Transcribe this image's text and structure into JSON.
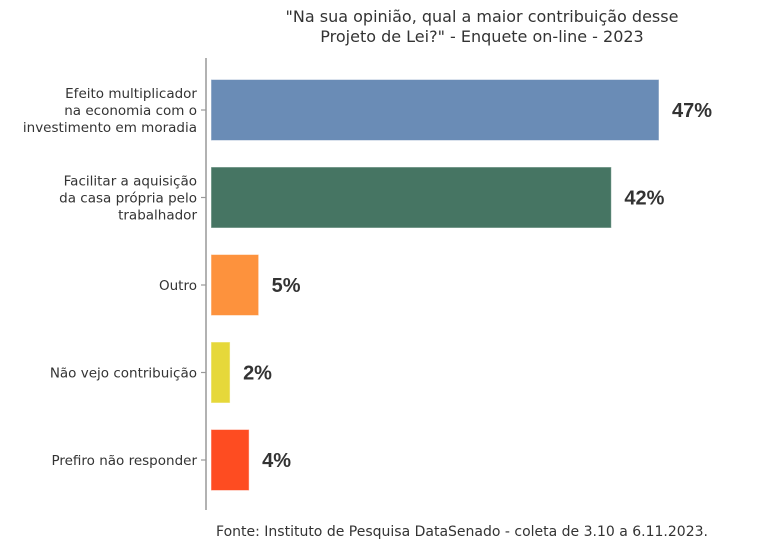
{
  "chart_data": {
    "type": "bar",
    "orientation": "horizontal",
    "title": [
      "\"Na sua opinião, qual a maior contribuição desse",
      "Projeto de Lei?\" - Enquete on-line - 2023"
    ],
    "categories": [
      [
        "Efeito multiplicador",
        "na economia com o",
        "investimento em moradia"
      ],
      [
        "Facilitar a aquisição",
        "da casa própria pelo",
        "trabalhador"
      ],
      [
        "Outro"
      ],
      [
        "Não vejo contribuição"
      ],
      [
        "Prefiro não responder"
      ]
    ],
    "values": [
      47,
      42,
      5,
      2,
      4
    ],
    "labels": [
      "47%",
      "42%",
      "5%",
      "2%",
      "4%"
    ],
    "colors": [
      "#6a8cb6",
      "#467563",
      "#fd923d",
      "#e6d83a",
      "#fe4c21"
    ],
    "xlim": [
      0,
      47
    ],
    "xlabel": "",
    "ylabel": "",
    "grid": false,
    "source": "Fonte: Instituto de Pesquisa DataSenado - coleta de 3.10 a 6.11.2023."
  }
}
